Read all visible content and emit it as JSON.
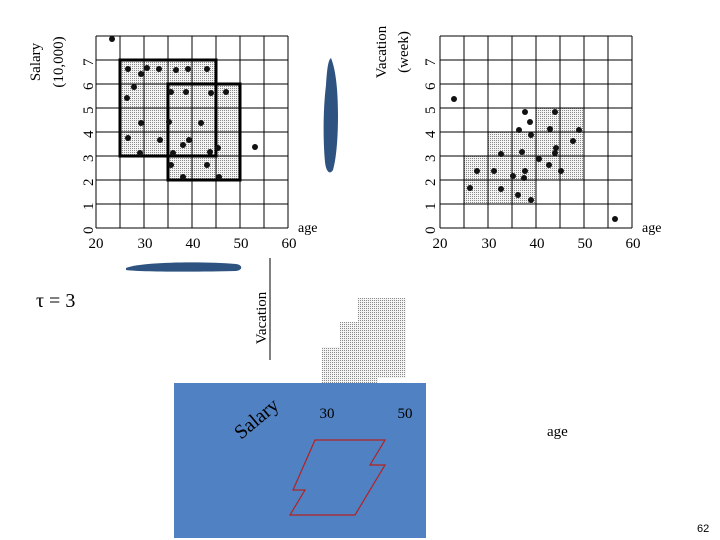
{
  "tau_label": "τ = 3",
  "page_number": "62",
  "colors": {
    "blue": "#5081c2",
    "dark_blue": "#2e5380",
    "stipple": "#d8d8d8",
    "cluster_edge": "#b22222"
  },
  "left_plot": {
    "ylabel_line1": "Salary",
    "ylabel_line2": "(10,000)",
    "xlabel": "age",
    "x_ticks": [
      "20",
      "30",
      "40",
      "50",
      "60"
    ],
    "y_ticks": [
      "0",
      "1",
      "2",
      "3",
      "4",
      "5",
      "6",
      "7"
    ]
  },
  "right_plot": {
    "ylabel_line1": "Vacation",
    "ylabel_line2": "(week)",
    "xlabel": "age",
    "x_ticks": [
      "20",
      "30",
      "40",
      "50",
      "60"
    ],
    "y_ticks": [
      "0",
      "1",
      "2",
      "3",
      "4",
      "5",
      "6",
      "7"
    ]
  },
  "bottom_3d": {
    "vacation_label": "Vacation",
    "salary_label": "Salary",
    "age_label": "age",
    "tick_30": "30",
    "tick_50": "50"
  }
}
